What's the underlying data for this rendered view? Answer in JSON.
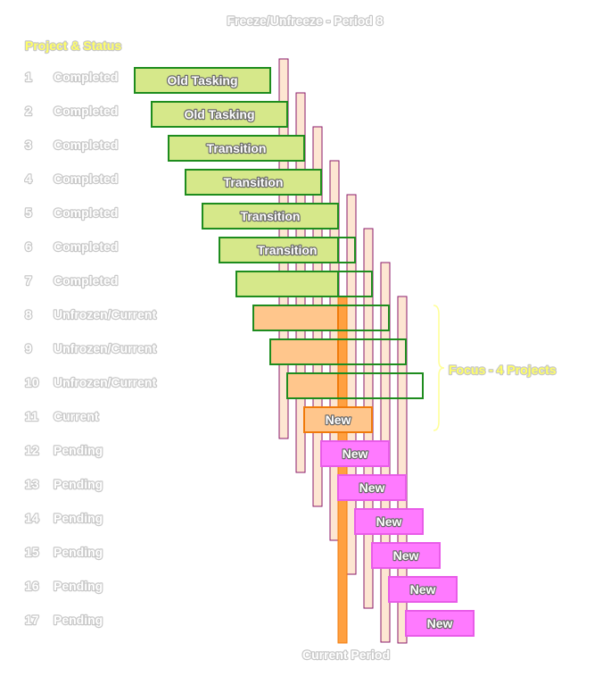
{
  "title": "Freeze/Unfreeze - Period 8",
  "header_label": "Project & Status",
  "footer_label": "Current Period",
  "focus_label": "Focus - 4 Projects",
  "current_period": 8,
  "colors": {
    "completed_fill": "#d6e88a",
    "completed_stroke": "#1e8c1e",
    "active_fill": "#ffc68c",
    "active_stroke": "#f07a0a",
    "new_current_fill": "#ffc68c",
    "pending_fill": "#ff7aff",
    "pending_stroke": "#e85ce8",
    "period_fill": "#fde6d2",
    "period_stroke": "#8a1a6a",
    "current_bar": "#ffa040",
    "focus_brace": "#ffff9a",
    "label_text": "#ffffff",
    "header_text": "#ffff66"
  },
  "rows": [
    {
      "num": "1",
      "status": "Completed",
      "phase": "Old Tasking",
      "kind": "completed"
    },
    {
      "num": "2",
      "status": "Completed",
      "phase": "Old Tasking",
      "kind": "completed"
    },
    {
      "num": "3",
      "status": "Completed",
      "phase": "Transition",
      "kind": "completed"
    },
    {
      "num": "4",
      "status": "Completed",
      "phase": "Transition",
      "kind": "completed"
    },
    {
      "num": "5",
      "status": "Completed",
      "phase": "Transition",
      "kind": "completed"
    },
    {
      "num": "6",
      "status": "Completed",
      "phase": "Transition",
      "kind": "completed"
    },
    {
      "num": "7",
      "status": "Completed",
      "phase": "",
      "kind": "completed"
    },
    {
      "num": "8",
      "status": "Unfrozen/Current",
      "phase": "",
      "kind": "active"
    },
    {
      "num": "9",
      "status": "Unfrozen/Current",
      "phase": "",
      "kind": "active"
    },
    {
      "num": "10",
      "status": "Unfrozen/Current",
      "phase": "",
      "kind": "active"
    },
    {
      "num": "11",
      "status": "Current",
      "phase": "New",
      "kind": "current"
    },
    {
      "num": "12",
      "status": "Pending",
      "phase": "New",
      "kind": "pending"
    },
    {
      "num": "13",
      "status": "Pending",
      "phase": "New",
      "kind": "pending"
    },
    {
      "num": "14",
      "status": "Pending",
      "phase": "New",
      "kind": "pending"
    },
    {
      "num": "15",
      "status": "Pending",
      "phase": "New",
      "kind": "pending"
    },
    {
      "num": "16",
      "status": "Pending",
      "phase": "New",
      "kind": "pending"
    },
    {
      "num": "17",
      "status": "Pending",
      "phase": "New",
      "kind": "pending"
    }
  ]
}
